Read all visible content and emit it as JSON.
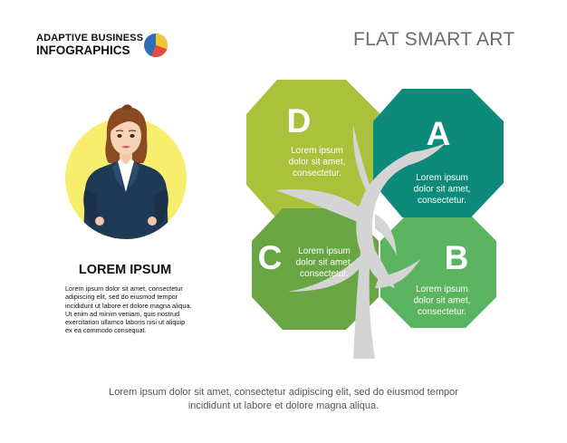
{
  "brand": {
    "line1": "ADAPTIVE BUSINESS",
    "line2": "INFOGRAPHICS",
    "logo_colors": [
      "#2d6fb7",
      "#e84c3d",
      "#f5c431"
    ]
  },
  "title": "FLAT SMART ART",
  "person": {
    "heading": "LOREM IPSUM",
    "body": "Lorem ipsum dolor sit amet, consectetur adipiscing elit, sed do eiusmod tempor incididunt ut labore et dolore magna aliqua. Ut enim ad minim veniam, quis nostrud exercitation ullamco laboris nisi ut aliquip ex ea commodo consequat."
  },
  "segments": [
    {
      "id": "D",
      "letter": "D",
      "color": "#a9c13b",
      "lines": [
        "Lorem ipsum",
        "dolor sit amet,",
        "consectetur."
      ]
    },
    {
      "id": "A",
      "letter": "A",
      "color": "#0e8a7a",
      "lines": [
        "Lorem ipsum",
        "dolor sit amet,",
        "consectetur."
      ]
    },
    {
      "id": "C",
      "letter": "C",
      "color": "#6aa544",
      "lines": [
        "Lorem ipsum",
        "dolor sit amet,",
        "consectetur."
      ]
    },
    {
      "id": "B",
      "letter": "B",
      "color": "#5bb560",
      "lines": [
        "Lorem ipsum",
        "dolor sit amet,",
        "consectetur."
      ]
    }
  ],
  "tree_color": "#d4d4d4",
  "footer": {
    "line1": "Lorem ipsum dolor sit amet, consectetur adipiscing elit, sed do eiusmod tempor",
    "line2": "incididunt ut labore et dolore magna aliqua."
  }
}
